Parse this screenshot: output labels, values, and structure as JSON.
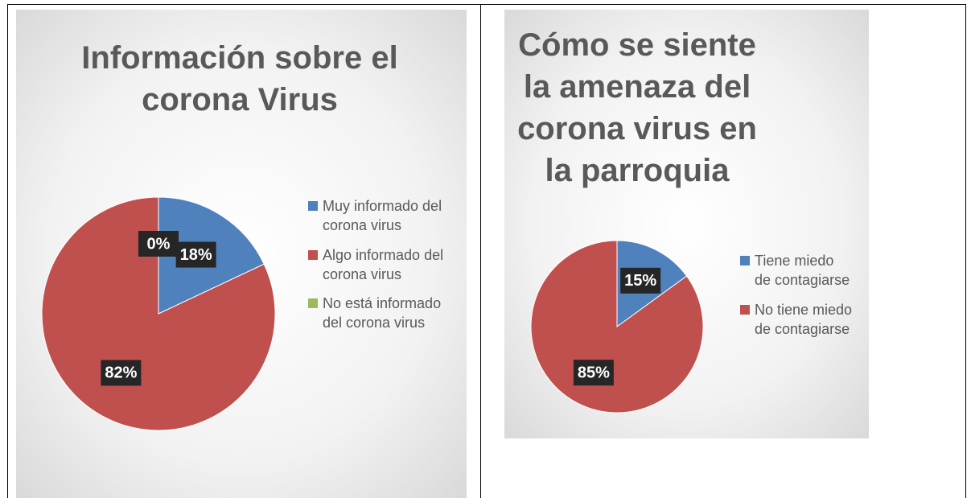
{
  "chart_data": [
    {
      "type": "pie",
      "title": "Información sobre el corona Virus",
      "categories": [
        "Muy informado del corona virus",
        "Algo informado del corona virus",
        "No está informado del corona virus"
      ],
      "values": [
        18,
        82,
        0
      ],
      "value_labels": [
        "18%",
        "82%",
        "0%"
      ],
      "colors": [
        "#4f81bd",
        "#c0504d",
        "#9bbb59"
      ],
      "legend": "right"
    },
    {
      "type": "pie",
      "title": "Cómo se siente la amenaza del corona virus en la parroquia",
      "categories": [
        "Tiene miedo de contagiarse",
        "No tiene miedo de contagiarse"
      ],
      "values": [
        15,
        85
      ],
      "value_labels": [
        "15%",
        "85%"
      ],
      "colors": [
        "#4f81bd",
        "#c0504d"
      ],
      "legend": "right"
    }
  ]
}
